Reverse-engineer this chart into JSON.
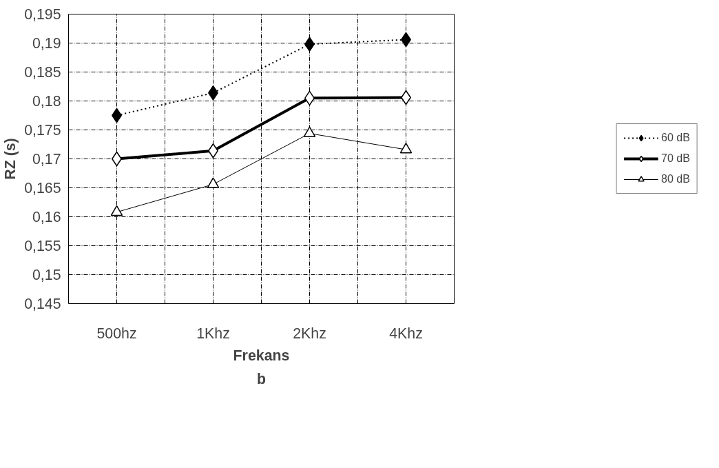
{
  "chart_data": {
    "type": "line",
    "xlabel": "Frekans",
    "ylabel": "RZ (s)",
    "annotations": [
      "b"
    ],
    "categories": [
      "500hz",
      "1Khz",
      "2Khz",
      "4Khz"
    ],
    "series": [
      {
        "name": "60 dB",
        "color": "#000000",
        "marker": "diamond",
        "line_style": "dotted",
        "values": [
          0.1775,
          0.1814,
          0.1898,
          0.1906
        ]
      },
      {
        "name": "70 dB",
        "color": "#000000",
        "marker": "diamond",
        "line_style": "solid",
        "values": [
          0.17,
          0.1714,
          0.1805,
          0.1806
        ]
      },
      {
        "name": "80 dB",
        "color": "#000000",
        "marker": "triangle",
        "line_style": "solid",
        "values": [
          0.1608,
          0.1656,
          0.1744,
          0.1716
        ]
      }
    ],
    "ylim": [
      0.145,
      0.195
    ],
    "yticks": [
      {
        "value": 0.145,
        "label": "0,145"
      },
      {
        "value": 0.15,
        "label": "0,15"
      },
      {
        "value": 0.155,
        "label": "0,155"
      },
      {
        "value": 0.16,
        "label": "0,16"
      },
      {
        "value": 0.165,
        "label": "0,165"
      },
      {
        "value": 0.17,
        "label": "0,17"
      },
      {
        "value": 0.175,
        "label": "0,175"
      },
      {
        "value": 0.18,
        "label": "0,18"
      },
      {
        "value": 0.185,
        "label": "0,185"
      },
      {
        "value": 0.19,
        "label": "0,19"
      },
      {
        "value": 0.195,
        "label": "0,195"
      }
    ],
    "grid": true,
    "legend": "right"
  }
}
